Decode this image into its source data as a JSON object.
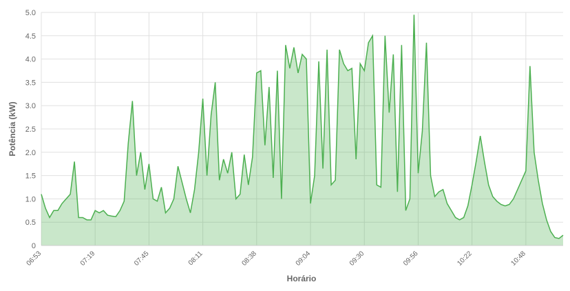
{
  "chart_data": {
    "type": "area",
    "x_label": "Horário",
    "y_label": "Potência (kW)",
    "color": "#4caf50",
    "grid": true,
    "ylim": [
      0,
      5
    ],
    "yticks": [
      0,
      0.5,
      {
        "value": 1,
        "label": "1.0"
      },
      1.5,
      {
        "value": 2,
        "label": "2.0"
      },
      2.5,
      {
        "value": 3,
        "label": "3.0"
      },
      3.5,
      {
        "value": 4,
        "label": "4.0"
      },
      4.5,
      {
        "value": 5,
        "label": "5.0"
      }
    ],
    "categories": [
      "06:53",
      null,
      null,
      null,
      null,
      null,
      null,
      null,
      null,
      null,
      null,
      null,
      null,
      "07:19",
      null,
      null,
      null,
      null,
      null,
      null,
      null,
      null,
      null,
      null,
      null,
      null,
      "07:45",
      null,
      null,
      null,
      null,
      null,
      null,
      null,
      null,
      null,
      null,
      null,
      null,
      "08:11",
      null,
      null,
      null,
      null,
      null,
      null,
      null,
      null,
      null,
      null,
      null,
      null,
      "08:38",
      null,
      null,
      null,
      null,
      null,
      null,
      null,
      null,
      null,
      null,
      null,
      null,
      "09:04",
      null,
      null,
      null,
      null,
      null,
      null,
      null,
      null,
      null,
      null,
      null,
      null,
      "09:30",
      null,
      null,
      null,
      null,
      null,
      null,
      null,
      null,
      null,
      null,
      null,
      null,
      "09:56",
      null,
      null,
      null,
      null,
      null,
      null,
      null,
      null,
      null,
      null,
      null,
      null,
      "10:22",
      null,
      null,
      null,
      null,
      null,
      null,
      null,
      null,
      null,
      null,
      null,
      null,
      "10:48",
      null,
      null,
      null,
      null,
      null,
      null,
      null,
      null,
      null
    ],
    "values": [
      1.1,
      0.8,
      0.6,
      0.75,
      0.75,
      0.9,
      1.0,
      1.1,
      1.8,
      0.6,
      0.6,
      0.55,
      0.55,
      0.75,
      0.7,
      0.75,
      0.65,
      0.63,
      0.62,
      0.75,
      0.95,
      2.2,
      3.1,
      1.5,
      2.0,
      1.2,
      1.75,
      1.0,
      0.95,
      1.25,
      0.7,
      0.8,
      1.0,
      1.7,
      1.35,
      1.0,
      0.7,
      1.2,
      2.0,
      3.15,
      1.5,
      2.8,
      3.5,
      1.4,
      1.85,
      1.55,
      2.0,
      1.0,
      1.1,
      1.95,
      1.3,
      1.9,
      3.7,
      3.75,
      2.15,
      3.4,
      1.45,
      3.75,
      1.0,
      4.3,
      3.8,
      4.25,
      3.7,
      4.1,
      4.0,
      0.9,
      1.5,
      3.95,
      1.65,
      4.2,
      1.3,
      1.4,
      4.2,
      3.9,
      3.75,
      3.8,
      1.85,
      3.9,
      3.75,
      4.35,
      4.5,
      1.3,
      1.25,
      4.5,
      2.85,
      4.1,
      1.15,
      4.3,
      0.75,
      1.0,
      4.95,
      1.55,
      2.45,
      4.35,
      1.5,
      1.05,
      1.15,
      1.2,
      0.9,
      0.75,
      0.6,
      0.55,
      0.6,
      0.85,
      1.3,
      1.8,
      2.35,
      1.8,
      1.3,
      1.05,
      0.95,
      0.88,
      0.85,
      0.88,
      1.0,
      1.2,
      1.4,
      1.6,
      3.85,
      2.0,
      1.4,
      0.9,
      0.55,
      0.3,
      0.17,
      0.15,
      0.22
    ]
  }
}
